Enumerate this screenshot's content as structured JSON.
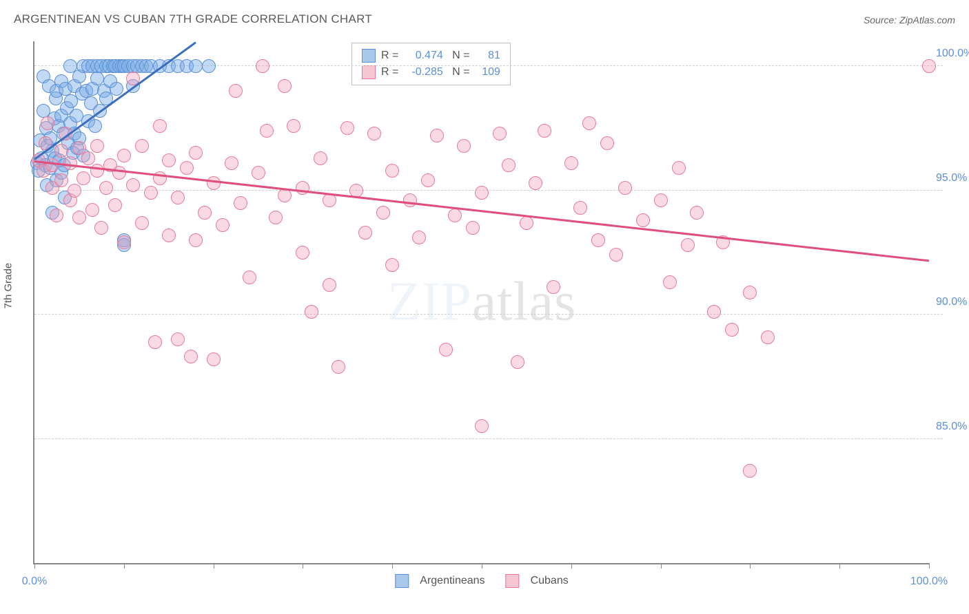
{
  "title": "ARGENTINEAN VS CUBAN 7TH GRADE CORRELATION CHART",
  "source": "Source: ZipAtlas.com",
  "watermark_part1": "ZIP",
  "watermark_part2": "atlas",
  "ylabel": "7th Grade",
  "chart": {
    "type": "scatter",
    "x_domain": [
      0,
      100
    ],
    "y_domain": [
      80,
      101
    ],
    "y_ticks": [
      {
        "v": 100,
        "label": "100.0%"
      },
      {
        "v": 95,
        "label": "95.0%"
      },
      {
        "v": 90,
        "label": "90.0%"
      },
      {
        "v": 85,
        "label": "85.0%"
      }
    ],
    "x_ticks": [
      0,
      10,
      20,
      30,
      40,
      50,
      60,
      70,
      80,
      90,
      100
    ],
    "x_tick_labels": [
      {
        "v": 0,
        "label": "0.0%"
      },
      {
        "v": 100,
        "label": "100.0%"
      }
    ],
    "legend_stats": {
      "series1": {
        "R": "0.474",
        "N": "81"
      },
      "series2": {
        "R": "-0.285",
        "N": "109"
      }
    },
    "bottom_legend": [
      {
        "label": "Argentineans",
        "fill": "#a9c8ec",
        "stroke": "#5b8fd6"
      },
      {
        "label": "Cubans",
        "fill": "#f6c6d2",
        "stroke": "#e77a9a"
      }
    ],
    "grid_color": "#d0d0d0",
    "axis_color": "#888888",
    "tick_label_color": "#5b8fd6",
    "marker_radius": 10,
    "series": [
      {
        "name": "Argentineans",
        "fill": "rgba(120,170,228,0.45)",
        "stroke": "#5b8fd6",
        "trend": {
          "x1": 0,
          "y1": 96.3,
          "x2": 18,
          "y2": 101,
          "color": "#3a6fc0"
        },
        "points": [
          [
            0.3,
            96.1
          ],
          [
            0.5,
            95.8
          ],
          [
            0.6,
            97.0
          ],
          [
            0.8,
            96.3
          ],
          [
            1.0,
            98.2
          ],
          [
            1.0,
            99.6
          ],
          [
            1.2,
            96.0
          ],
          [
            1.3,
            97.5
          ],
          [
            1.4,
            95.2
          ],
          [
            1.5,
            96.8
          ],
          [
            1.6,
            99.2
          ],
          [
            1.8,
            97.1
          ],
          [
            1.8,
            95.9
          ],
          [
            2.0,
            96.6
          ],
          [
            2.0,
            94.1
          ],
          [
            2.2,
            97.9
          ],
          [
            2.3,
            96.3
          ],
          [
            2.4,
            98.7
          ],
          [
            2.5,
            95.4
          ],
          [
            2.5,
            99.0
          ],
          [
            2.7,
            97.6
          ],
          [
            2.8,
            96.2
          ],
          [
            3.0,
            98.0
          ],
          [
            3.0,
            99.4
          ],
          [
            3.0,
            95.7
          ],
          [
            3.2,
            97.3
          ],
          [
            3.3,
            96.0
          ],
          [
            3.4,
            94.7
          ],
          [
            3.5,
            99.1
          ],
          [
            3.6,
            98.3
          ],
          [
            3.8,
            96.9
          ],
          [
            4.0,
            97.7
          ],
          [
            4.0,
            100.0
          ],
          [
            4.1,
            98.6
          ],
          [
            4.3,
            96.5
          ],
          [
            4.5,
            99.2
          ],
          [
            4.5,
            97.3
          ],
          [
            4.7,
            98.0
          ],
          [
            4.8,
            96.7
          ],
          [
            5.0,
            99.6
          ],
          [
            5.0,
            97.1
          ],
          [
            5.3,
            98.9
          ],
          [
            5.5,
            96.4
          ],
          [
            5.5,
            100.0
          ],
          [
            5.8,
            99.0
          ],
          [
            6.0,
            97.8
          ],
          [
            6.0,
            100.0
          ],
          [
            6.3,
            98.5
          ],
          [
            6.5,
            99.1
          ],
          [
            6.5,
            100.0
          ],
          [
            6.8,
            97.6
          ],
          [
            7.0,
            99.5
          ],
          [
            7.0,
            100.0
          ],
          [
            7.3,
            98.2
          ],
          [
            7.5,
            100.0
          ],
          [
            7.8,
            99.0
          ],
          [
            8.0,
            100.0
          ],
          [
            8.0,
            98.7
          ],
          [
            8.3,
            100.0
          ],
          [
            8.5,
            99.4
          ],
          [
            8.8,
            100.0
          ],
          [
            9.0,
            100.0
          ],
          [
            9.2,
            99.1
          ],
          [
            9.5,
            100.0
          ],
          [
            9.8,
            100.0
          ],
          [
            10.0,
            100.0
          ],
          [
            10.0,
            93.0
          ],
          [
            10.5,
            100.0
          ],
          [
            11.0,
            100.0
          ],
          [
            11.0,
            99.2
          ],
          [
            11.5,
            100.0
          ],
          [
            12.0,
            100.0
          ],
          [
            12.5,
            100.0
          ],
          [
            13.0,
            100.0
          ],
          [
            14.0,
            100.0
          ],
          [
            15.0,
            100.0
          ],
          [
            16.0,
            100.0
          ],
          [
            17.0,
            100.0
          ],
          [
            18.0,
            100.0
          ],
          [
            19.5,
            100.0
          ],
          [
            10.0,
            92.8
          ]
        ]
      },
      {
        "name": "Cubans",
        "fill": "rgba(240,160,185,0.40)",
        "stroke": "#e77a9a",
        "trend": {
          "x1": 0,
          "y1": 96.2,
          "x2": 100,
          "y2": 92.2,
          "color": "#e04e7c"
        },
        "points": [
          [
            0.5,
            96.2
          ],
          [
            1.0,
            95.8
          ],
          [
            1.2,
            96.9
          ],
          [
            1.5,
            97.7
          ],
          [
            2.0,
            96.0
          ],
          [
            2.0,
            95.1
          ],
          [
            2.5,
            94.0
          ],
          [
            3.0,
            96.6
          ],
          [
            3.0,
            95.4
          ],
          [
            3.5,
            97.3
          ],
          [
            4.0,
            96.1
          ],
          [
            4.0,
            94.6
          ],
          [
            4.5,
            95.0
          ],
          [
            5.0,
            96.7
          ],
          [
            5.0,
            93.9
          ],
          [
            5.5,
            95.5
          ],
          [
            6.0,
            96.3
          ],
          [
            6.5,
            94.2
          ],
          [
            7.0,
            95.8
          ],
          [
            7.0,
            96.8
          ],
          [
            7.5,
            93.5
          ],
          [
            8.0,
            95.1
          ],
          [
            8.5,
            96.0
          ],
          [
            9.0,
            94.4
          ],
          [
            9.5,
            95.7
          ],
          [
            10.0,
            96.4
          ],
          [
            10.0,
            92.9
          ],
          [
            11.0,
            99.5
          ],
          [
            11.0,
            95.2
          ],
          [
            12.0,
            96.8
          ],
          [
            12.0,
            93.7
          ],
          [
            13.0,
            94.9
          ],
          [
            13.5,
            88.9
          ],
          [
            14.0,
            95.5
          ],
          [
            14.0,
            97.6
          ],
          [
            15.0,
            93.2
          ],
          [
            15.0,
            96.2
          ],
          [
            16.0,
            94.7
          ],
          [
            16.0,
            89.0
          ],
          [
            17.0,
            95.9
          ],
          [
            17.5,
            88.3
          ],
          [
            18.0,
            93.0
          ],
          [
            18.0,
            96.5
          ],
          [
            19.0,
            94.1
          ],
          [
            20.0,
            95.3
          ],
          [
            20.0,
            88.2
          ],
          [
            21.0,
            93.6
          ],
          [
            22.0,
            96.1
          ],
          [
            22.5,
            99.0
          ],
          [
            23.0,
            94.5
          ],
          [
            24.0,
            91.5
          ],
          [
            25.0,
            95.7
          ],
          [
            25.5,
            100.0
          ],
          [
            26.0,
            97.4
          ],
          [
            27.0,
            93.9
          ],
          [
            28.0,
            94.8
          ],
          [
            28.0,
            99.2
          ],
          [
            29.0,
            97.6
          ],
          [
            30.0,
            92.5
          ],
          [
            30.0,
            95.1
          ],
          [
            31.0,
            90.1
          ],
          [
            32.0,
            96.3
          ],
          [
            33.0,
            91.2
          ],
          [
            33.0,
            94.6
          ],
          [
            34.0,
            87.9
          ],
          [
            35.0,
            97.5
          ],
          [
            36.0,
            95.0
          ],
          [
            37.0,
            93.3
          ],
          [
            38.0,
            97.3
          ],
          [
            39.0,
            94.1
          ],
          [
            40.0,
            95.8
          ],
          [
            40.0,
            92.0
          ],
          [
            42.0,
            94.6
          ],
          [
            43.0,
            93.1
          ],
          [
            44.0,
            95.4
          ],
          [
            45.0,
            97.2
          ],
          [
            46.0,
            88.6
          ],
          [
            47.0,
            94.0
          ],
          [
            48.0,
            96.8
          ],
          [
            49.0,
            93.5
          ],
          [
            50.0,
            94.9
          ],
          [
            50.0,
            85.5
          ],
          [
            52.0,
            97.3
          ],
          [
            53.0,
            96.0
          ],
          [
            54.0,
            88.1
          ],
          [
            55.0,
            93.7
          ],
          [
            56.0,
            95.3
          ],
          [
            57.0,
            97.4
          ],
          [
            58.0,
            91.1
          ],
          [
            60.0,
            96.1
          ],
          [
            61.0,
            94.3
          ],
          [
            62.0,
            97.7
          ],
          [
            63.0,
            93.0
          ],
          [
            64.0,
            96.9
          ],
          [
            65.0,
            92.4
          ],
          [
            66.0,
            95.1
          ],
          [
            68.0,
            93.8
          ],
          [
            70.0,
            94.6
          ],
          [
            71.0,
            91.3
          ],
          [
            72.0,
            95.9
          ],
          [
            73.0,
            92.8
          ],
          [
            74.0,
            94.1
          ],
          [
            76.0,
            90.1
          ],
          [
            77.0,
            92.9
          ],
          [
            78.0,
            89.4
          ],
          [
            80.0,
            90.9
          ],
          [
            82.0,
            89.1
          ],
          [
            100.0,
            100.0
          ],
          [
            80.0,
            83.7
          ]
        ]
      }
    ]
  }
}
